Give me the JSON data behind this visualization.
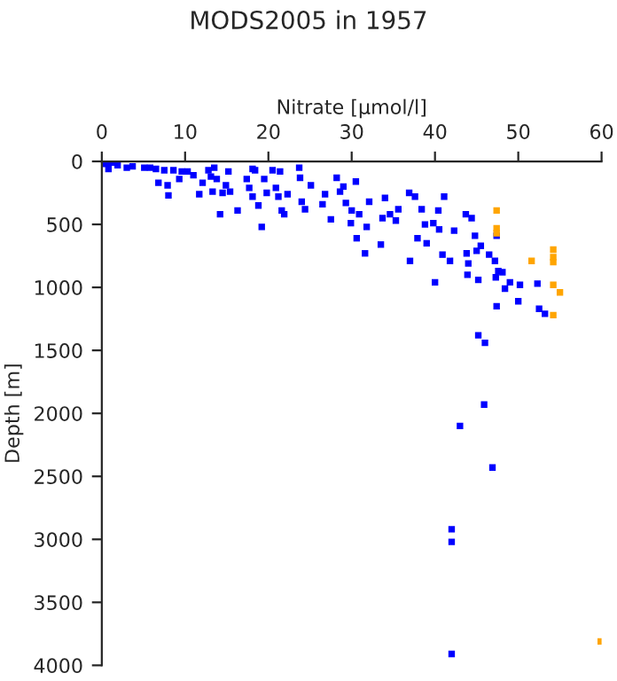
{
  "chart_data": {
    "type": "scatter",
    "title": "MODS2005 in 1957",
    "xlabel": "Nitrate [µmol/l]",
    "ylabel": "Depth [m]",
    "xlim": [
      0,
      60
    ],
    "xticks": [
      0,
      10,
      20,
      30,
      40,
      50,
      60
    ],
    "ylim": [
      4000,
      0
    ],
    "yticks": [
      0,
      500,
      1000,
      1500,
      2000,
      2500,
      3000,
      3500,
      4000
    ],
    "grid": false,
    "marker": "square",
    "series": [
      {
        "color": "#0000ff",
        "x": [
          0.5,
          1.2,
          1.9,
          0.8,
          3.0,
          3.7,
          5.1,
          5.8,
          6.5,
          6.8,
          7.5,
          7.9,
          8.0,
          8.6,
          9.3,
          9.6,
          10.3,
          11.0,
          11.7,
          12.1,
          12.8,
          13.1,
          13.3,
          13.5,
          13.8,
          14.2,
          14.5,
          14.9,
          15.2,
          15.4,
          16.3,
          18.1,
          17.4,
          17.7,
          18.1,
          18.4,
          18.8,
          19.2,
          19.5,
          19.8,
          20.5,
          20.9,
          21.2,
          21.4,
          21.6,
          21.9,
          22.3,
          23.7,
          23.8,
          24.0,
          24.4,
          25.1,
          26.5,
          26.8,
          27.5,
          28.2,
          28.6,
          29.0,
          29.3,
          29.9,
          30.0,
          30.5,
          30.6,
          30.9,
          31.6,
          31.8,
          32.1,
          33.5,
          33.7,
          34.0,
          34.6,
          35.3,
          35.6,
          36.9,
          37.0,
          37.6,
          37.9,
          38.4,
          38.8,
          39.0,
          39.8,
          40.0,
          40.4,
          40.5,
          40.9,
          41.1,
          41.8,
          42.3,
          43.7,
          43.8,
          43.9,
          44.0,
          44.4,
          44.8,
          45.0,
          45.2,
          45.5,
          46.5,
          47.2,
          47.3,
          47.4,
          47.6,
          48.1,
          48.4,
          49.0,
          50.0,
          50.2,
          52.3,
          52.5,
          53.2,
          47.4,
          45.2,
          46.0,
          45.9,
          43.0,
          46.9,
          42.0,
          42.0,
          42.0
        ],
        "values": [
          20,
          10,
          30,
          60,
          50,
          40,
          50,
          50,
          60,
          170,
          70,
          190,
          270,
          70,
          140,
          80,
          80,
          110,
          260,
          170,
          70,
          120,
          240,
          50,
          140,
          420,
          250,
          190,
          80,
          240,
          390,
          60,
          140,
          210,
          280,
          70,
          350,
          520,
          140,
          250,
          70,
          210,
          280,
          80,
          390,
          420,
          260,
          50,
          130,
          320,
          380,
          190,
          340,
          260,
          460,
          130,
          240,
          200,
          330,
          490,
          390,
          160,
          610,
          420,
          730,
          520,
          320,
          660,
          450,
          290,
          420,
          470,
          380,
          250,
          790,
          280,
          610,
          380,
          500,
          650,
          490,
          960,
          390,
          540,
          740,
          280,
          790,
          550,
          420,
          730,
          900,
          810,
          450,
          590,
          710,
          940,
          670,
          740,
          790,
          920,
          1150,
          870,
          880,
          1010,
          960,
          1110,
          980,
          970,
          1170,
          1210,
          590,
          1380,
          1440,
          1930,
          2100,
          2430,
          2920,
          3020,
          3910
        ]
      },
      {
        "color": "#ffa500",
        "x": [
          47.4,
          47.4,
          47.4,
          51.6,
          54.2,
          54.2,
          54.2,
          54.2,
          55.0,
          54.2,
          59.9
        ],
        "values": [
          390,
          530,
          570,
          790,
          700,
          760,
          800,
          980,
          1040,
          1220,
          3810
        ]
      }
    ]
  }
}
